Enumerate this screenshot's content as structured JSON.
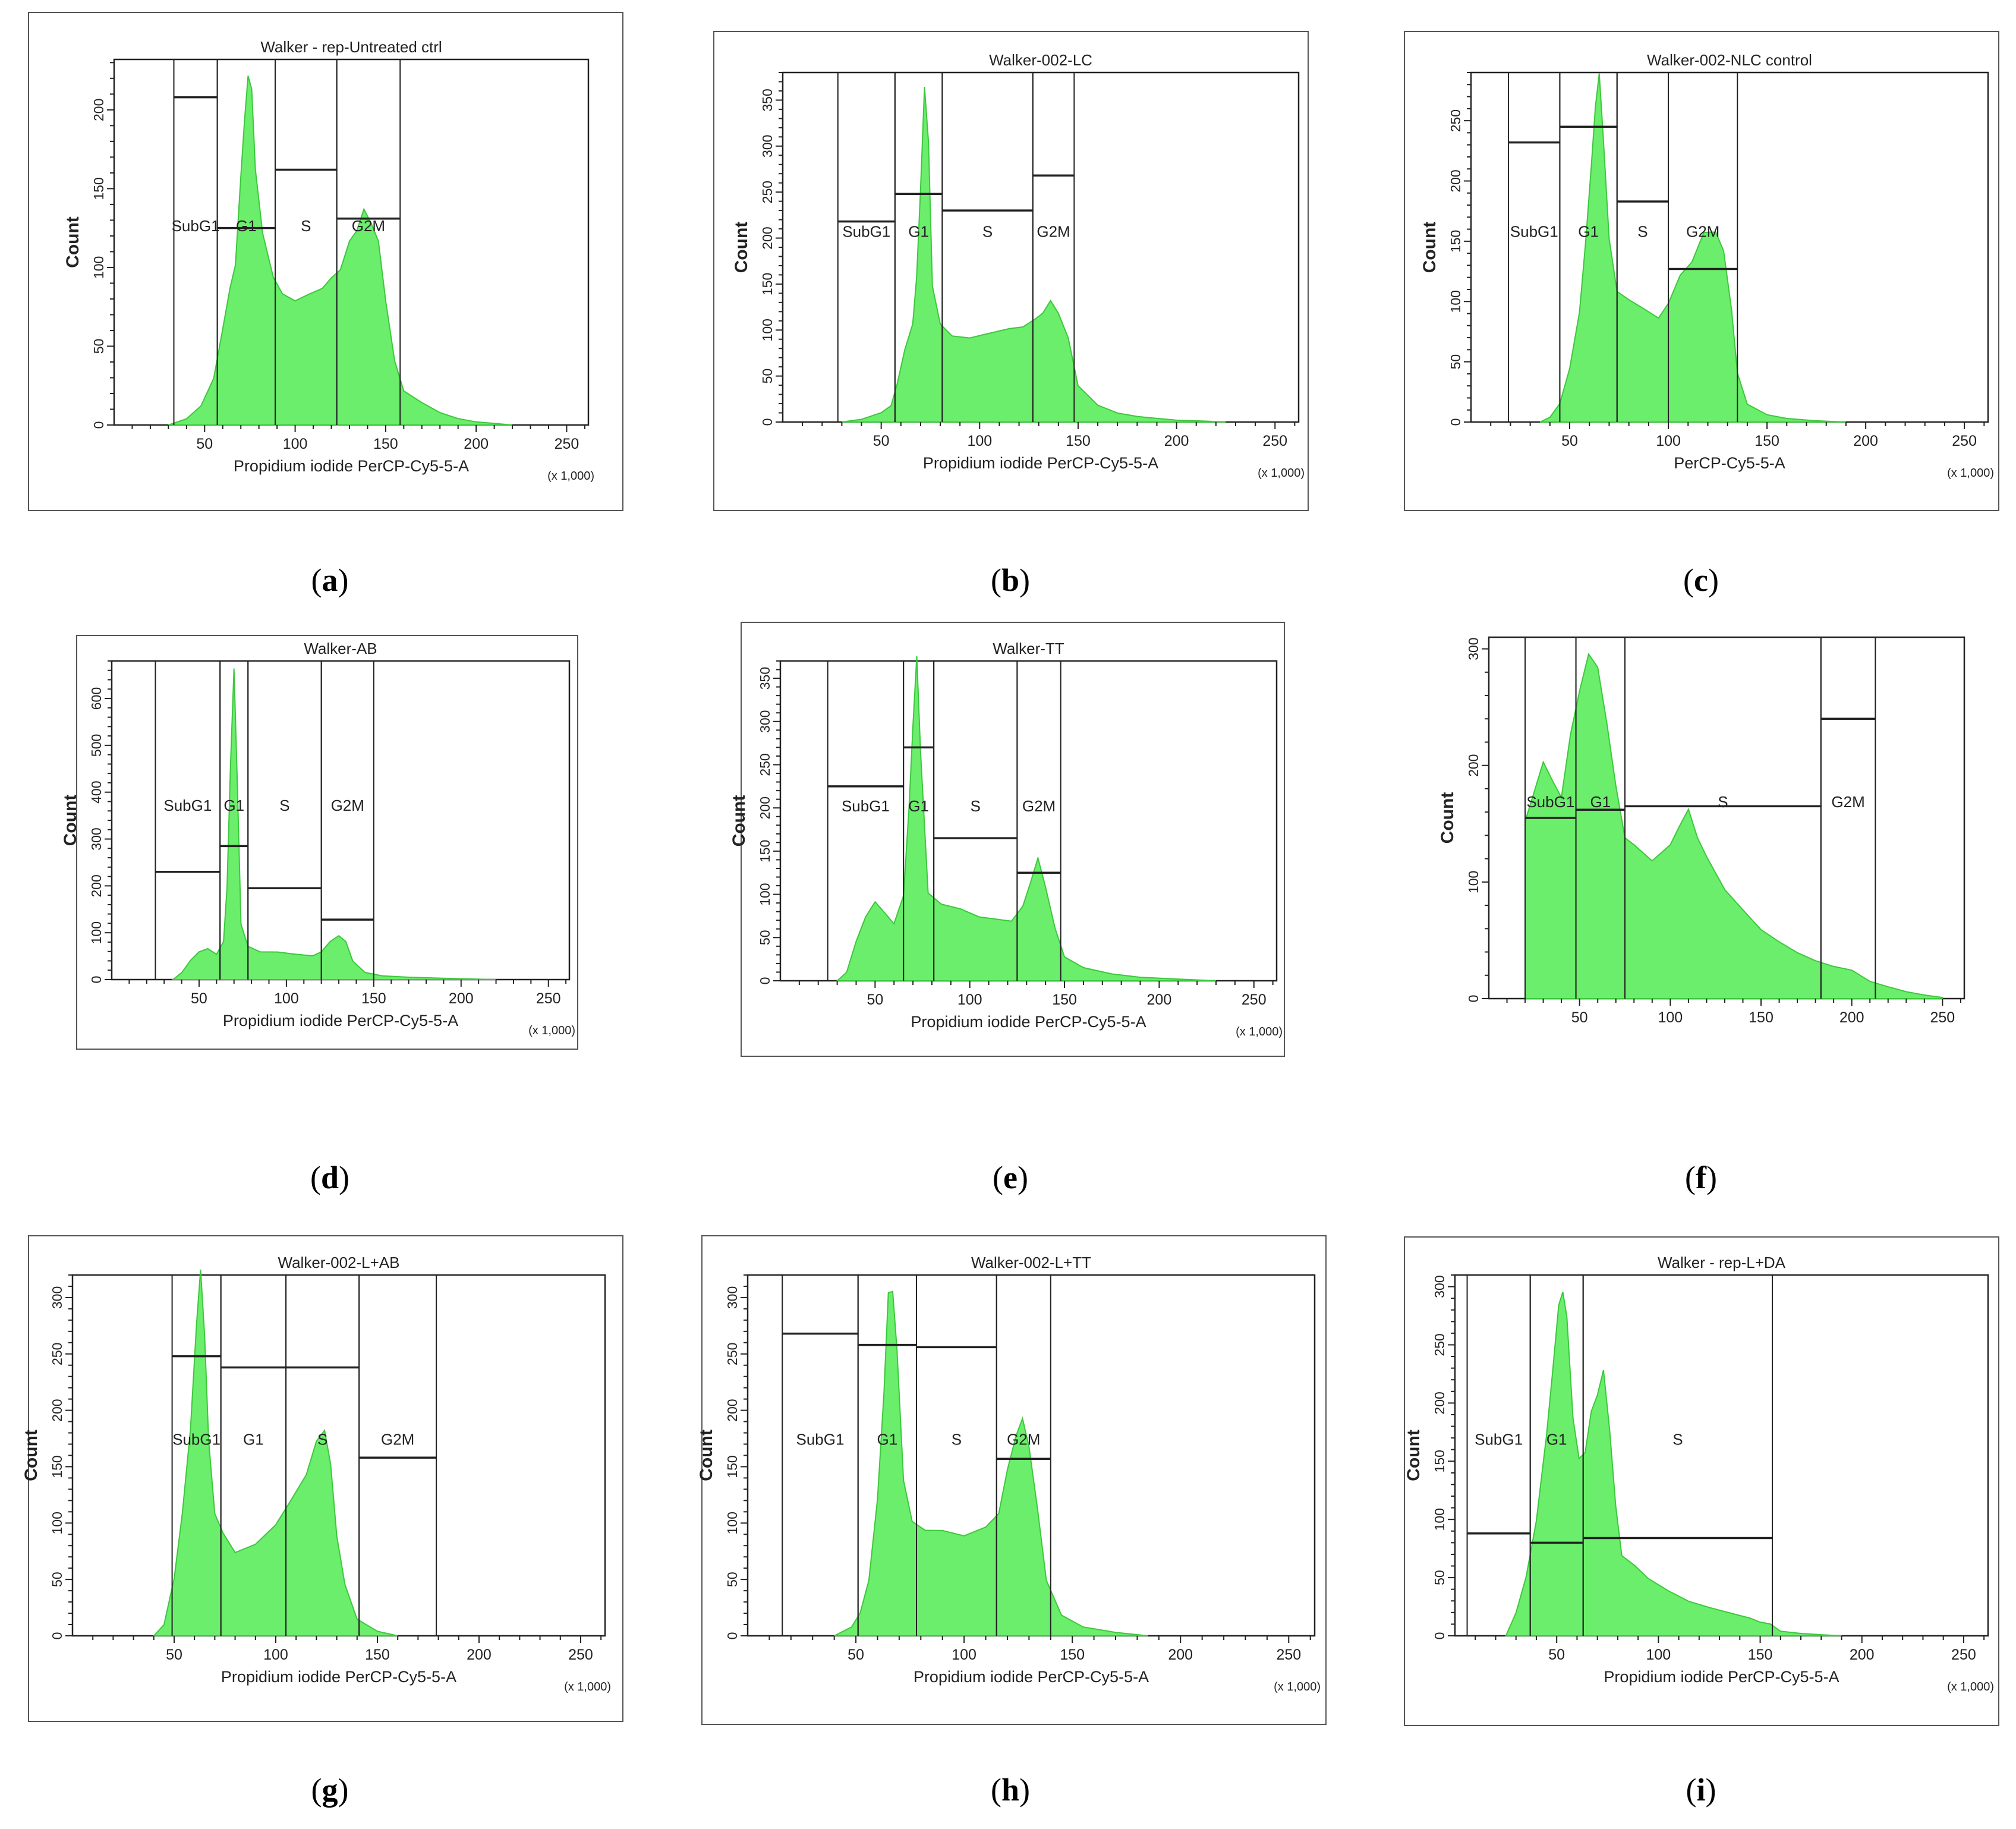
{
  "figure": {
    "colors": {
      "fill": "#6BEE6B",
      "fill_stroke": "#3CC83C",
      "gate": "#222222",
      "frame": "#555555",
      "text": "#222222"
    },
    "x_multiplier_label": "(x 1,000)",
    "count_label": "Count"
  },
  "chart_data": [
    {
      "panel": "a",
      "caption": "a",
      "type": "area",
      "title": "Walker - rep-Untreated ctrl",
      "xlabel": "Propidium iodide PerCP-Cy5-5-A",
      "ylabel": "Count",
      "xlim": [
        0,
        262
      ],
      "ylim": [
        0,
        232
      ],
      "x_ticks": [
        50,
        100,
        150,
        200,
        250
      ],
      "y_ticks": [
        0,
        50,
        100,
        150,
        200
      ],
      "gates": [
        {
          "label": "SubG1",
          "x": [
            33,
            57
          ],
          "level": 208
        },
        {
          "label": "G1",
          "x": [
            57,
            89
          ],
          "level": 125
        },
        {
          "label": "S",
          "x": [
            89,
            123
          ],
          "level": 162
        },
        {
          "label": "G2M",
          "x": [
            123,
            158
          ],
          "level": 131
        }
      ],
      "series": [
        {
          "name": "histogram",
          "x": [
            30,
            40,
            48,
            55,
            60,
            64,
            67,
            70,
            72,
            74,
            76,
            78,
            82,
            88,
            93,
            100,
            108,
            115,
            120,
            125,
            130,
            134,
            138,
            142,
            146,
            150,
            155,
            160,
            170,
            180,
            190,
            200,
            210,
            220
          ],
          "values": [
            0,
            4,
            12,
            30,
            60,
            88,
            100,
            160,
            190,
            225,
            210,
            165,
            120,
            95,
            82,
            80,
            82,
            88,
            92,
            100,
            115,
            125,
            135,
            130,
            115,
            80,
            40,
            22,
            14,
            8,
            4,
            2,
            1,
            0
          ]
        }
      ]
    },
    {
      "panel": "b",
      "caption": "b",
      "type": "area",
      "title": "Walker-002-LC",
      "xlabel": "Propidium iodide PerCP-Cy5-5-A",
      "ylabel": "Count",
      "xlim": [
        0,
        262
      ],
      "ylim": [
        0,
        380
      ],
      "x_ticks": [
        50,
        100,
        150,
        200,
        250
      ],
      "y_ticks": [
        0,
        50,
        100,
        150,
        200,
        250,
        300,
        350
      ],
      "gates": [
        {
          "label": "SubG1",
          "x": [
            28,
            57
          ],
          "level": 218
        },
        {
          "label": "G1",
          "x": [
            57,
            81
          ],
          "level": 248
        },
        {
          "label": "S",
          "x": [
            81,
            127
          ],
          "level": 230
        },
        {
          "label": "G2M",
          "x": [
            127,
            148
          ],
          "level": 268
        }
      ],
      "series": [
        {
          "name": "histogram",
          "x": [
            30,
            40,
            50,
            55,
            58,
            62,
            66,
            68,
            70,
            72,
            74,
            76,
            80,
            86,
            95,
            105,
            115,
            122,
            128,
            132,
            136,
            140,
            145,
            150,
            160,
            170,
            180,
            190,
            200,
            215,
            225
          ],
          "values": [
            0,
            3,
            10,
            18,
            40,
            80,
            105,
            160,
            250,
            370,
            300,
            150,
            105,
            95,
            90,
            98,
            100,
            105,
            110,
            120,
            130,
            120,
            90,
            40,
            18,
            10,
            6,
            4,
            2,
            1,
            0
          ]
        }
      ]
    },
    {
      "panel": "c",
      "caption": "c",
      "type": "area",
      "title": "Walker-002-NLC control",
      "xlabel": "PerCP-Cy5-5-A",
      "ylabel": "Count",
      "xlim": [
        0,
        262
      ],
      "ylim": [
        0,
        290
      ],
      "x_ticks": [
        50,
        100,
        150,
        200,
        250
      ],
      "y_ticks": [
        0,
        50,
        100,
        150,
        200,
        250
      ],
      "gates": [
        {
          "label": "SubG1",
          "x": [
            19,
            45
          ],
          "level": 232
        },
        {
          "label": "G1",
          "x": [
            45,
            74
          ],
          "level": 245
        },
        {
          "label": "S",
          "x": [
            74,
            100
          ],
          "level": 183
        },
        {
          "label": "G2M",
          "x": [
            100,
            135
          ],
          "level": 127
        }
      ],
      "series": [
        {
          "name": "histogram",
          "x": [
            35,
            40,
            45,
            50,
            55,
            58,
            61,
            63,
            65,
            67,
            70,
            74,
            80,
            88,
            95,
            100,
            106,
            112,
            118,
            124,
            128,
            132,
            135,
            140,
            150,
            160,
            175,
            190
          ],
          "values": [
            0,
            4,
            15,
            45,
            90,
            150,
            210,
            265,
            285,
            240,
            150,
            110,
            100,
            95,
            85,
            100,
            120,
            135,
            155,
            160,
            140,
            95,
            40,
            15,
            6,
            3,
            1,
            0
          ]
        }
      ]
    },
    {
      "panel": "d",
      "caption": "d",
      "type": "area",
      "title": "Walker-AB",
      "xlabel": "Propidium iodide PerCP-Cy5-5-A",
      "ylabel": "Count",
      "xlim": [
        0,
        262
      ],
      "ylim": [
        0,
        680
      ],
      "x_ticks": [
        50,
        100,
        150,
        200,
        250
      ],
      "y_ticks": [
        0,
        100,
        200,
        300,
        400,
        500,
        600
      ],
      "gates": [
        {
          "label": "SubG1",
          "x": [
            25,
            62
          ],
          "level": 230
        },
        {
          "label": "G1",
          "x": [
            62,
            78
          ],
          "level": 285
        },
        {
          "label": "S",
          "x": [
            78,
            120
          ],
          "level": 195
        },
        {
          "label": "G2M",
          "x": [
            120,
            150
          ],
          "level": 128
        }
      ],
      "series": [
        {
          "name": "histogram",
          "x": [
            35,
            40,
            45,
            50,
            55,
            60,
            64,
            66,
            68,
            70,
            72,
            74,
            78,
            85,
            95,
            105,
            115,
            120,
            125,
            130,
            134,
            138,
            145,
            155,
            170,
            190,
            210,
            220
          ],
          "values": [
            0,
            15,
            40,
            60,
            65,
            55,
            80,
            200,
            450,
            670,
            400,
            120,
            70,
            60,
            58,
            55,
            50,
            60,
            80,
            95,
            80,
            40,
            15,
            8,
            5,
            3,
            1,
            0
          ]
        }
      ]
    },
    {
      "panel": "e",
      "caption": "e",
      "type": "area",
      "title": "Walker-TT",
      "xlabel": "Propidium iodide PerCP-Cy5-5-A",
      "ylabel": "Count",
      "xlim": [
        0,
        262
      ],
      "ylim": [
        0,
        370
      ],
      "x_ticks": [
        50,
        100,
        150,
        200,
        250
      ],
      "y_ticks": [
        0,
        50,
        100,
        150,
        200,
        250,
        300,
        350
      ],
      "gates": [
        {
          "label": "SubG1",
          "x": [
            25,
            65
          ],
          "level": 225
        },
        {
          "label": "G1",
          "x": [
            65,
            81
          ],
          "level": 270
        },
        {
          "label": "S",
          "x": [
            81,
            125
          ],
          "level": 165
        },
        {
          "label": "G2M",
          "x": [
            125,
            148
          ],
          "level": 125
        }
      ],
      "series": [
        {
          "name": "histogram",
          "x": [
            30,
            35,
            40,
            45,
            50,
            55,
            60,
            65,
            68,
            70,
            72,
            74,
            78,
            85,
            95,
            105,
            115,
            122,
            128,
            132,
            136,
            140,
            145,
            150,
            160,
            175,
            190,
            210,
            230
          ],
          "values": [
            0,
            10,
            45,
            75,
            90,
            80,
            65,
            100,
            200,
            300,
            370,
            270,
            100,
            90,
            82,
            75,
            70,
            70,
            85,
            115,
            140,
            110,
            60,
            28,
            15,
            8,
            4,
            2,
            0
          ]
        }
      ]
    },
    {
      "panel": "f",
      "caption": "f",
      "type": "area",
      "title": "",
      "xlabel": "",
      "ylabel": "Count",
      "xlim": [
        0,
        262
      ],
      "ylim": [
        0,
        310
      ],
      "x_ticks": [
        50,
        100,
        150,
        200,
        250
      ],
      "y_ticks": [
        0,
        100,
        200,
        300
      ],
      "gates": [
        {
          "label": "SubG1",
          "x": [
            20,
            48
          ],
          "level": 155
        },
        {
          "label": "G1",
          "x": [
            48,
            75
          ],
          "level": 162
        },
        {
          "label": "S",
          "x": [
            75,
            183
          ],
          "level": 165
        },
        {
          "label": "G2M",
          "x": [
            183,
            213
          ],
          "level": 240
        }
      ],
      "series": [
        {
          "name": "histogram",
          "x": [
            20,
            25,
            30,
            35,
            40,
            45,
            50,
            55,
            60,
            65,
            70,
            75,
            80,
            90,
            100,
            105,
            110,
            115,
            120,
            130,
            140,
            150,
            160,
            170,
            180,
            190,
            200,
            210,
            220,
            230,
            240,
            250
          ],
          "values": [
            150,
            180,
            200,
            190,
            170,
            230,
            260,
            300,
            280,
            240,
            180,
            140,
            130,
            120,
            130,
            150,
            160,
            140,
            120,
            95,
            75,
            60,
            48,
            40,
            32,
            28,
            24,
            15,
            10,
            6,
            3,
            1
          ]
        }
      ]
    },
    {
      "panel": "g",
      "caption": "g",
      "type": "area",
      "title": "Walker-002-L+AB",
      "xlabel": "Propidium iodide PerCP-Cy5-5-A",
      "ylabel": "Count",
      "xlim": [
        0,
        262
      ],
      "ylim": [
        0,
        320
      ],
      "x_ticks": [
        50,
        100,
        150,
        200,
        250
      ],
      "y_ticks": [
        0,
        50,
        100,
        150,
        200,
        250,
        300
      ],
      "gates": [
        {
          "label": "SubG1",
          "x": [
            49,
            73
          ],
          "level": 248
        },
        {
          "label": "G1",
          "x": [
            73,
            105
          ],
          "level": 238
        },
        {
          "label": "S",
          "x": [
            105,
            141
          ],
          "level": 238
        },
        {
          "label": "G2M",
          "x": [
            141,
            179
          ],
          "level": 158
        }
      ],
      "series": [
        {
          "name": "histogram",
          "x": [
            40,
            45,
            50,
            54,
            58,
            61,
            63,
            65,
            67,
            70,
            74,
            80,
            90,
            100,
            108,
            115,
            120,
            124,
            127,
            130,
            134,
            140,
            150,
            160
          ],
          "values": [
            0,
            10,
            50,
            110,
            180,
            280,
            320,
            270,
            170,
            110,
            90,
            75,
            80,
            100,
            120,
            145,
            170,
            185,
            150,
            90,
            45,
            15,
            4,
            0
          ]
        }
      ]
    },
    {
      "panel": "h",
      "caption": "h",
      "type": "area",
      "title": "Walker-002-L+TT",
      "xlabel": "Propidium iodide PerCP-Cy5-5-A",
      "ylabel": "Count",
      "xlim": [
        0,
        262
      ],
      "ylim": [
        0,
        320
      ],
      "x_ticks": [
        50,
        100,
        150,
        200,
        250
      ],
      "y_ticks": [
        0,
        50,
        100,
        150,
        200,
        250,
        300
      ],
      "gates": [
        {
          "label": "SubG1",
          "x": [
            16,
            51
          ],
          "level": 268
        },
        {
          "label": "G1",
          "x": [
            51,
            78
          ],
          "level": 258
        },
        {
          "label": "S",
          "x": [
            78,
            115
          ],
          "level": 256
        },
        {
          "label": "G2M",
          "x": [
            115,
            140
          ],
          "level": 157
        }
      ],
      "series": [
        {
          "name": "histogram",
          "x": [
            40,
            48,
            52,
            56,
            60,
            63,
            65,
            67,
            69,
            72,
            76,
            82,
            90,
            100,
            110,
            116,
            120,
            124,
            127,
            130,
            134,
            138,
            145,
            155,
            170,
            185
          ],
          "values": [
            0,
            8,
            20,
            50,
            120,
            220,
            300,
            310,
            250,
            140,
            100,
            95,
            92,
            90,
            95,
            110,
            145,
            180,
            190,
            170,
            110,
            50,
            18,
            8,
            3,
            0
          ]
        }
      ]
    },
    {
      "panel": "i",
      "caption": "i",
      "type": "area",
      "title": "Walker - rep-L+DA",
      "xlabel": "Propidium iodide PerCP-Cy5-5-A",
      "ylabel": "Count",
      "xlim": [
        0,
        262
      ],
      "ylim": [
        0,
        310
      ],
      "x_ticks": [
        50,
        100,
        150,
        200,
        250
      ],
      "y_ticks": [
        0,
        50,
        100,
        150,
        200,
        250,
        300
      ],
      "gates": [
        {
          "label": "SubG1",
          "x": [
            6,
            37
          ],
          "level": 88
        },
        {
          "label": "G1",
          "x": [
            37,
            63
          ],
          "level": 80
        },
        {
          "label": "S",
          "x": [
            63,
            156
          ],
          "level": 84
        }
      ],
      "series": [
        {
          "name": "histogram",
          "x": [
            25,
            30,
            35,
            40,
            45,
            48,
            51,
            53,
            55,
            58,
            61,
            64,
            67,
            70,
            73,
            76,
            79,
            82,
            88,
            95,
            105,
            115,
            125,
            135,
            145,
            150,
            155,
            160,
            170,
            180,
            190
          ],
          "values": [
            0,
            20,
            50,
            100,
            170,
            230,
            280,
            300,
            270,
            190,
            150,
            160,
            190,
            210,
            225,
            180,
            110,
            70,
            60,
            50,
            38,
            30,
            24,
            20,
            15,
            12,
            10,
            4,
            2,
            1,
            0
          ]
        }
      ]
    }
  ]
}
